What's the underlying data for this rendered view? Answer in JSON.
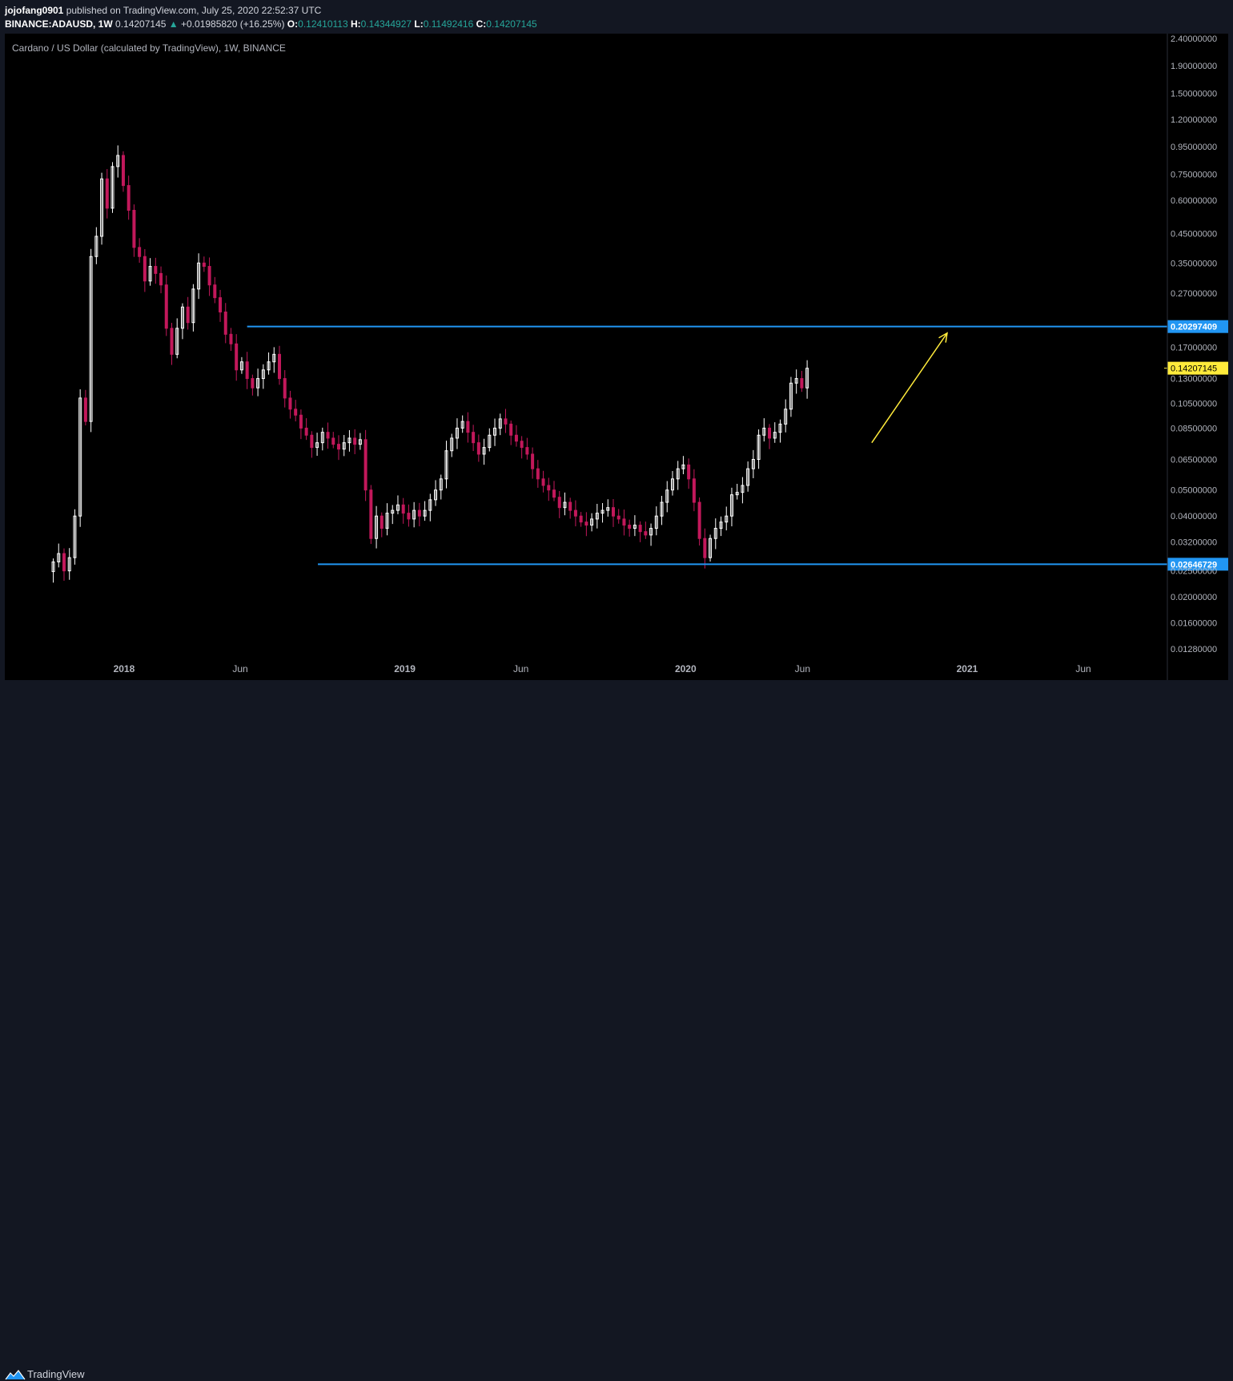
{
  "header": {
    "author": "jojofang0901",
    "published_text": "published on TradingView.com, July 25, 2020 22:52:37 UTC",
    "symbol": "BINANCE:ADAUSD, 1W",
    "last_price": "0.14207145",
    "change": "+0.01985820 (+16.25%)",
    "open_label": "O:",
    "open": "0.12410113",
    "high_label": "H:",
    "high": "0.14344927",
    "low_label": "L:",
    "low": "0.11492416",
    "close_label": "C:",
    "close": "0.14207145"
  },
  "footer": {
    "brand": "TradingView"
  },
  "colors": {
    "up": "#ffffff",
    "down": "#c2185b",
    "hline": "#2196f3",
    "arrow": "#ffeb3b",
    "price_tag": "#ffeb3b",
    "background": "#000000"
  },
  "chart_data": {
    "type": "candlestick",
    "title": "Cardano / US Dollar (calculated by TradingView), 1W, BINANCE",
    "y_scale": "log",
    "ylim": [
      0.0118,
      2.5
    ],
    "y_ticks": [
      "2.40000000",
      "1.90000000",
      "1.50000000",
      "1.20000000",
      "0.95000000",
      "0.75000000",
      "0.60000000",
      "0.45000000",
      "0.35000000",
      "0.27000000",
      "0.17000000",
      "0.13000000",
      "0.10500000",
      "0.08500000",
      "0.06500000",
      "0.05000000",
      "0.04000000",
      "0.03200000",
      "0.02500000",
      "0.02000000",
      "0.01600000",
      "0.01280000"
    ],
    "x_range": [
      "2017-07-30",
      "2021-09-12"
    ],
    "x_ticks": [
      {
        "date": "2018-01-01",
        "label": "2018",
        "bold": true
      },
      {
        "date": "2018-06-01",
        "label": "Jun",
        "bold": false
      },
      {
        "date": "2019-01-01",
        "label": "2019",
        "bold": true
      },
      {
        "date": "2019-06-01",
        "label": "Jun",
        "bold": false
      },
      {
        "date": "2020-01-01",
        "label": "2020",
        "bold": true
      },
      {
        "date": "2020-06-01",
        "label": "Jun",
        "bold": false
      },
      {
        "date": "2021-01-01",
        "label": "2021",
        "bold": true
      },
      {
        "date": "2021-06-01",
        "label": "Jun",
        "bold": false
      }
    ],
    "candle_start_date": "2017-10-01",
    "candle_interval_days": 7,
    "closes": [
      0.027,
      0.029,
      0.025,
      0.028,
      0.04,
      0.11,
      0.09,
      0.37,
      0.44,
      0.72,
      0.56,
      0.8,
      0.88,
      0.68,
      0.55,
      0.4,
      0.37,
      0.3,
      0.34,
      0.32,
      0.29,
      0.2,
      0.16,
      0.2,
      0.24,
      0.21,
      0.28,
      0.35,
      0.34,
      0.29,
      0.26,
      0.23,
      0.19,
      0.175,
      0.14,
      0.15,
      0.13,
      0.12,
      0.13,
      0.14,
      0.15,
      0.16,
      0.13,
      0.11,
      0.1,
      0.095,
      0.085,
      0.08,
      0.072,
      0.075,
      0.082,
      0.078,
      0.074,
      0.071,
      0.075,
      0.078,
      0.074,
      0.077,
      0.05,
      0.033,
      0.04,
      0.036,
      0.041,
      0.042,
      0.044,
      0.041,
      0.039,
      0.042,
      0.04,
      0.042,
      0.046,
      0.05,
      0.055,
      0.07,
      0.078,
      0.085,
      0.09,
      0.082,
      0.075,
      0.068,
      0.072,
      0.08,
      0.085,
      0.092,
      0.088,
      0.08,
      0.076,
      0.072,
      0.068,
      0.06,
      0.055,
      0.052,
      0.05,
      0.047,
      0.043,
      0.045,
      0.042,
      0.04,
      0.038,
      0.037,
      0.039,
      0.041,
      0.042,
      0.043,
      0.04,
      0.039,
      0.037,
      0.036,
      0.037,
      0.035,
      0.034,
      0.036,
      0.04,
      0.045,
      0.05,
      0.055,
      0.06,
      0.062,
      0.055,
      0.045,
      0.033,
      0.028,
      0.033,
      0.036,
      0.038,
      0.04,
      0.048,
      0.049,
      0.052,
      0.06,
      0.065,
      0.08,
      0.085,
      0.078,
      0.082,
      0.088,
      0.1,
      0.125,
      0.13,
      0.12,
      0.142
    ],
    "hlines": [
      {
        "value": 0.20297409,
        "label": "0.20297409",
        "from_date": "2018-06-10"
      },
      {
        "value": 0.02646729,
        "label": "0.02646729",
        "from_date": "2018-09-10"
      }
    ],
    "price_tag": {
      "value": 0.14207145,
      "label": "0.14207145"
    },
    "arrow": {
      "from": {
        "date": "2020-08-30",
        "value": 0.075
      },
      "to": {
        "date": "2020-12-06",
        "value": 0.192
      }
    }
  }
}
